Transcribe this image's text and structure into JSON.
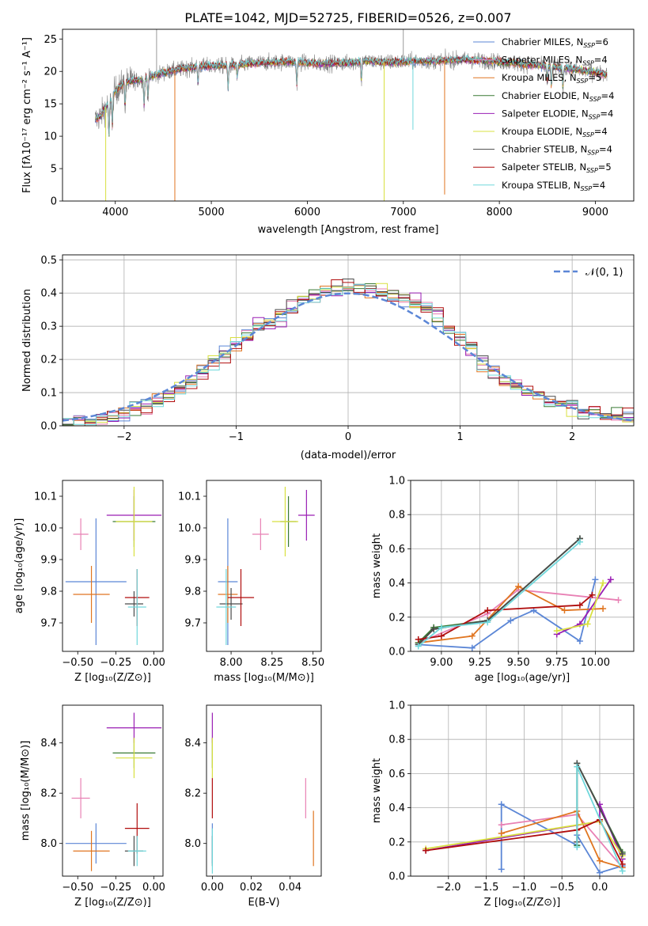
{
  "colors": {
    "Chabrier MILES": "#5b86d6",
    "Salpeter MILES": "#e880b4",
    "Kroupa MILES": "#e07520",
    "Chabrier ELODIE": "#3a7a34",
    "Salpeter ELODIE": "#9a1fb4",
    "Kroupa ELODIE": "#d8e040",
    "Chabrier STELIB": "#4a4a4a",
    "Salpeter STELIB": "#b00d0d",
    "Kroupa STELIB": "#70d8dc",
    "normal": "#5b86d6",
    "grid": "#b0b0b0",
    "spectrum_gray": "#808080"
  },
  "chart_data": [
    {
      "id": "spectrum",
      "type": "line",
      "title": "PLATE=1042, MJD=52725, FIBERID=0526, z=0.007",
      "xlabel": "wavelength [Angstrom, rest frame]",
      "ylabel": "Flux [fλ10⁻¹⁷ erg cm⁻² s⁻¹ A⁻¹]",
      "xlim": [
        3450,
        9400
      ],
      "ylim": [
        0,
        26.5
      ],
      "xticks": [
        4000,
        5000,
        6000,
        7000,
        8000,
        9000
      ],
      "yticks": [
        0,
        5,
        10,
        15,
        20,
        25
      ],
      "grid": false,
      "legend_position": "top-right",
      "legend": [
        {
          "label": "Chabrier MILES, N",
          "sub": "SSP",
          "suffix": "=6"
        },
        {
          "label": "Salpeter MILES, N",
          "sub": "SSP",
          "suffix": "=4"
        },
        {
          "label": "Kroupa MILES, N",
          "sub": "SSP",
          "suffix": "=5"
        },
        {
          "label": "Chabrier ELODIE, N",
          "sub": "SSP",
          "suffix": "=4"
        },
        {
          "label": "Salpeter ELODIE, N",
          "sub": "SSP",
          "suffix": "=4"
        },
        {
          "label": "Kroupa ELODIE, N",
          "sub": "SSP",
          "suffix": "=4"
        },
        {
          "label": "Chabrier STELIB, N",
          "sub": "SSP",
          "suffix": "=4"
        },
        {
          "label": "Salpeter STELIB, N",
          "sub": "SSP",
          "suffix": "=5"
        },
        {
          "label": "Kroupa STELIB, N",
          "sub": "SSP",
          "suffix": "=4"
        }
      ],
      "continuum": [
        [
          3790,
          12.5
        ],
        [
          3850,
          13.2
        ],
        [
          3900,
          14.5
        ],
        [
          3950,
          15.5
        ],
        [
          4000,
          17.0
        ],
        [
          4100,
          18.3
        ],
        [
          4300,
          18.8
        ],
        [
          4500,
          19.8
        ],
        [
          4700,
          20.4
        ],
        [
          4900,
          20.8
        ],
        [
          5200,
          20.9
        ],
        [
          5500,
          21.3
        ],
        [
          5800,
          21.5
        ],
        [
          6100,
          21.2
        ],
        [
          6400,
          21.3
        ],
        [
          6600,
          21.6
        ],
        [
          6800,
          21.4
        ],
        [
          7000,
          21.5
        ],
        [
          7300,
          21.6
        ],
        [
          7600,
          21.8
        ],
        [
          7900,
          21.6
        ],
        [
          8200,
          21.2
        ],
        [
          8500,
          20.8
        ],
        [
          8800,
          20.3
        ],
        [
          9100,
          19.6
        ]
      ],
      "absorption_dips": [
        [
          3934,
          5.0
        ],
        [
          3969,
          4.5
        ],
        [
          4102,
          3.5
        ],
        [
          4300,
          4.0
        ],
        [
          4340,
          3.0
        ],
        [
          4861,
          2.5
        ],
        [
          5175,
          3.5
        ],
        [
          5270,
          2.0
        ],
        [
          5890,
          3.5
        ],
        [
          6563,
          3.0
        ],
        [
          8498,
          2.5
        ],
        [
          8542,
          3.0
        ],
        [
          8662,
          3.0
        ]
      ],
      "model_spikes": [
        [
          3900,
          0.0
        ],
        [
          4620,
          0.0
        ],
        [
          6800,
          0.0
        ],
        [
          7100,
          11.0
        ],
        [
          7430,
          1.0
        ]
      ],
      "data_spikes": [
        [
          4430,
          26.5
        ],
        [
          7000,
          26.5
        ]
      ]
    },
    {
      "id": "residual_histogram",
      "type": "histogram",
      "xlabel": "(data-model)/error",
      "ylabel": "Normed distribution",
      "xlim": [
        -2.55,
        2.55
      ],
      "ylim": [
        0,
        0.515
      ],
      "xticks": [
        -2,
        -1,
        0,
        1,
        2
      ],
      "yticks": [
        0.0,
        0.1,
        0.2,
        0.3,
        0.4,
        0.5
      ],
      "grid": true,
      "bin_width": 0.1,
      "series_name": "𝒩(0, 1)",
      "legend_position": "top-right",
      "profile": [
        [
          -2.55,
          0.008
        ],
        [
          -2.2,
          0.018
        ],
        [
          -1.95,
          0.045
        ],
        [
          -1.7,
          0.07
        ],
        [
          -1.45,
          0.125
        ],
        [
          -1.2,
          0.19
        ],
        [
          -1.0,
          0.24
        ],
        [
          -0.85,
          0.29
        ],
        [
          -0.6,
          0.33
        ],
        [
          -0.4,
          0.38
        ],
        [
          -0.2,
          0.41
        ],
        [
          0.0,
          0.42
        ],
        [
          0.2,
          0.415
        ],
        [
          0.4,
          0.4
        ],
        [
          0.6,
          0.37
        ],
        [
          0.8,
          0.33
        ],
        [
          1.0,
          0.27
        ],
        [
          1.2,
          0.19
        ],
        [
          1.45,
          0.13
        ],
        [
          1.7,
          0.09
        ],
        [
          1.95,
          0.06
        ],
        [
          2.2,
          0.04
        ],
        [
          2.55,
          0.025
        ]
      ]
    },
    {
      "id": "age_vs_Z",
      "type": "errorbar",
      "xlabel": "Z [log₁₀(Z/Z⊙)]",
      "ylabel": "age  [log₁₀(age/yr)]",
      "xlim": [
        -0.6,
        0.06
      ],
      "ylim": [
        9.61,
        10.15
      ],
      "xticks": [
        -0.5,
        -0.25,
        0.0
      ],
      "xticklabels": [
        "−0.50",
        "−0.25",
        "0.00"
      ],
      "yticks": [
        9.7,
        9.8,
        9.9,
        10.0,
        10.1
      ],
      "points": [
        {
          "series": "Chabrier MILES",
          "x": -0.38,
          "xerr": 0.2,
          "y": 9.83,
          "yerr": 0.2
        },
        {
          "series": "Salpeter MILES",
          "x": -0.48,
          "xerr": 0.05,
          "y": 9.98,
          "yerr": 0.05
        },
        {
          "series": "Kroupa MILES",
          "x": -0.41,
          "xerr": 0.12,
          "y": 9.79,
          "yerr": 0.09
        },
        {
          "series": "Chabrier ELODIE",
          "x": -0.13,
          "xerr": 0.14,
          "y": 10.02,
          "yerr": 0.08
        },
        {
          "series": "Salpeter ELODIE",
          "x": -0.13,
          "xerr": 0.18,
          "y": 10.04,
          "yerr": 0.08
        },
        {
          "series": "Kroupa ELODIE",
          "x": -0.13,
          "xerr": 0.12,
          "y": 10.02,
          "yerr": 0.11
        },
        {
          "series": "Chabrier STELIB",
          "x": -0.13,
          "xerr": 0.06,
          "y": 9.76,
          "yerr": 0.04
        },
        {
          "series": "Salpeter STELIB",
          "x": -0.11,
          "xerr": 0.08,
          "y": 9.78,
          "yerr": 0.09
        },
        {
          "series": "Kroupa STELIB",
          "x": -0.11,
          "xerr": 0.06,
          "y": 9.75,
          "yerr": 0.12
        }
      ]
    },
    {
      "id": "age_vs_mass",
      "type": "errorbar",
      "xlabel": "mass [log₁₀(M/M⊙)]",
      "ylabel": "",
      "xlim": [
        7.85,
        8.55
      ],
      "ylim": [
        9.61,
        10.15
      ],
      "xticks": [
        8.0,
        8.25,
        8.5
      ],
      "xticklabels": [
        "8.00",
        "8.25",
        "8.50"
      ],
      "yticks": [
        9.7,
        9.8,
        9.9,
        10.0,
        10.1
      ],
      "points": [
        {
          "series": "Chabrier MILES",
          "x": 7.98,
          "xerr": 0.06,
          "y": 9.83,
          "yerr": 0.2
        },
        {
          "series": "Salpeter MILES",
          "x": 8.18,
          "xerr": 0.05,
          "y": 9.98,
          "yerr": 0.05
        },
        {
          "series": "Kroupa MILES",
          "x": 7.98,
          "xerr": 0.06,
          "y": 9.79,
          "yerr": 0.09
        },
        {
          "series": "Chabrier ELODIE",
          "x": 8.35,
          "xerr": 0.05,
          "y": 10.02,
          "yerr": 0.08
        },
        {
          "series": "Salpeter ELODIE",
          "x": 8.46,
          "xerr": 0.05,
          "y": 10.04,
          "yerr": 0.08
        },
        {
          "series": "Kroupa ELODIE",
          "x": 8.33,
          "xerr": 0.08,
          "y": 10.02,
          "yerr": 0.11
        },
        {
          "series": "Chabrier STELIB",
          "x": 8.0,
          "xerr": 0.07,
          "y": 9.76,
          "yerr": 0.05
        },
        {
          "series": "Salpeter STELIB",
          "x": 8.06,
          "xerr": 0.08,
          "y": 9.78,
          "yerr": 0.09
        },
        {
          "series": "Kroupa STELIB",
          "x": 7.97,
          "xerr": 0.06,
          "y": 9.75,
          "yerr": 0.12
        }
      ]
    },
    {
      "id": "mass_vs_Z",
      "type": "errorbar",
      "xlabel": "Z [log₁₀(Z/Z⊙)]",
      "ylabel": "mass [log₁₀(M/M⊙)]",
      "xlim": [
        -0.6,
        0.06
      ],
      "ylim": [
        7.87,
        8.55
      ],
      "xticks": [
        -0.5,
        -0.25,
        0.0
      ],
      "xticklabels": [
        "−0.50",
        "−0.25",
        "0.00"
      ],
      "yticks": [
        8.0,
        8.2,
        8.4
      ],
      "points": [
        {
          "series": "Chabrier MILES",
          "x": -0.38,
          "xerr": 0.2,
          "y": 8.0,
          "yerr": 0.08
        },
        {
          "series": "Salpeter MILES",
          "x": -0.48,
          "xerr": 0.06,
          "y": 8.18,
          "yerr": 0.08
        },
        {
          "series": "Kroupa MILES",
          "x": -0.41,
          "xerr": 0.12,
          "y": 7.97,
          "yerr": 0.08
        },
        {
          "series": "Chabrier ELODIE",
          "x": -0.13,
          "xerr": 0.14,
          "y": 8.36,
          "yerr": 0.06
        },
        {
          "series": "Salpeter ELODIE",
          "x": -0.13,
          "xerr": 0.18,
          "y": 8.46,
          "yerr": 0.06
        },
        {
          "series": "Kroupa ELODIE",
          "x": -0.13,
          "xerr": 0.12,
          "y": 8.34,
          "yerr": 0.08
        },
        {
          "series": "Chabrier STELIB",
          "x": -0.13,
          "xerr": 0.06,
          "y": 7.97,
          "yerr": 0.06
        },
        {
          "series": "Salpeter STELIB",
          "x": -0.11,
          "xerr": 0.08,
          "y": 8.06,
          "yerr": 0.1
        },
        {
          "series": "Kroupa STELIB",
          "x": -0.11,
          "xerr": 0.06,
          "y": 7.97,
          "yerr": 0.06
        }
      ]
    },
    {
      "id": "mass_vs_EBV",
      "type": "errorbar",
      "xlabel": "E(B-V)",
      "ylabel": "",
      "xlim": [
        -0.003,
        0.056
      ],
      "ylim": [
        7.87,
        8.55
      ],
      "xticks": [
        0.0,
        0.02,
        0.04
      ],
      "xticklabels": [
        "0.00",
        "0.02",
        "0.04"
      ],
      "yticks": [
        8.0,
        8.2,
        8.4
      ],
      "points": [
        {
          "series": "Chabrier MILES",
          "x": 0.0,
          "xerr": 0.0,
          "y": 8.0,
          "yerr": 0.08
        },
        {
          "series": "Salpeter MILES",
          "x": 0.048,
          "xerr": 0.0,
          "y": 8.18,
          "yerr": 0.08
        },
        {
          "series": "Kroupa MILES",
          "x": 0.052,
          "xerr": 0.0,
          "y": 8.02,
          "yerr": 0.11
        },
        {
          "series": "Chabrier ELODIE",
          "x": 0.0,
          "xerr": 0.0,
          "y": 8.36,
          "yerr": 0.06
        },
        {
          "series": "Salpeter ELODIE",
          "x": 0.0,
          "xerr": 0.0,
          "y": 8.46,
          "yerr": 0.06
        },
        {
          "series": "Kroupa ELODIE",
          "x": 0.0,
          "xerr": 0.0,
          "y": 8.34,
          "yerr": 0.08
        },
        {
          "series": "Chabrier STELIB",
          "x": 0.0,
          "xerr": 0.0,
          "y": 7.97,
          "yerr": 0.06
        },
        {
          "series": "Salpeter STELIB",
          "x": 0.0,
          "xerr": 0.0,
          "y": 8.18,
          "yerr": 0.08
        },
        {
          "series": "Kroupa STELIB",
          "x": 0.0,
          "xerr": 0.0,
          "y": 7.97,
          "yerr": 0.09
        }
      ]
    },
    {
      "id": "weight_vs_age",
      "type": "line",
      "marker": "+",
      "xlabel": "age  [log₁₀(age/yr)]",
      "ylabel": "mass weight",
      "xlim": [
        8.8,
        10.25
      ],
      "ylim": [
        0,
        1.0
      ],
      "xticks": [
        9.0,
        9.25,
        9.5,
        9.75,
        10.0
      ],
      "xticklabels": [
        "9.00",
        "9.25",
        "9.50",
        "9.75",
        "10.00"
      ],
      "yticks": [
        0.0,
        0.2,
        0.4,
        0.6,
        0.8,
        1.0
      ],
      "yticklabels": [
        "0.0",
        "0.2",
        "0.4",
        "0.6",
        "0.8",
        "1.0"
      ],
      "grid": true,
      "series": [
        {
          "name": "Chabrier MILES",
          "x": [
            8.85,
            9.2,
            9.45,
            9.6,
            9.9,
            10.0
          ],
          "y": [
            0.04,
            0.02,
            0.18,
            0.24,
            0.06,
            0.42
          ]
        },
        {
          "name": "Salpeter MILES",
          "x": [
            8.85,
            9.3,
            9.5,
            10.15
          ],
          "y": [
            0.05,
            0.22,
            0.36,
            0.3
          ]
        },
        {
          "name": "Kroupa MILES",
          "x": [
            8.85,
            9.2,
            9.5,
            9.8,
            10.05
          ],
          "y": [
            0.05,
            0.09,
            0.38,
            0.24,
            0.25
          ]
        },
        {
          "name": "Chabrier ELODIE",
          "x": [
            8.85,
            8.95,
            9.3,
            9.9
          ],
          "y": [
            0.05,
            0.14,
            0.18,
            0.66
          ]
        },
        {
          "name": "Salpeter ELODIE",
          "x": [
            9.75,
            9.9,
            10.1
          ],
          "y": [
            0.1,
            0.16,
            0.42
          ]
        },
        {
          "name": "Kroupa ELODIE",
          "x": [
            9.75,
            9.95,
            10.05
          ],
          "y": [
            0.12,
            0.16,
            0.4
          ]
        },
        {
          "name": "Chabrier STELIB",
          "x": [
            8.85,
            8.95,
            9.3,
            9.9
          ],
          "y": [
            0.04,
            0.13,
            0.18,
            0.66
          ]
        },
        {
          "name": "Salpeter STELIB",
          "x": [
            8.85,
            9.0,
            9.3,
            9.9,
            9.98
          ],
          "y": [
            0.07,
            0.09,
            0.24,
            0.27,
            0.33
          ]
        },
        {
          "name": "Kroupa STELIB",
          "x": [
            8.85,
            9.0,
            9.3,
            9.9
          ],
          "y": [
            0.03,
            0.14,
            0.17,
            0.64
          ]
        }
      ]
    },
    {
      "id": "weight_vs_Z",
      "type": "line",
      "marker": "+",
      "xlabel": "Z [log₁₀(Z/Z⊙)]",
      "ylabel": "mass weight",
      "xlim": [
        -2.5,
        0.45
      ],
      "ylim": [
        0,
        1.0
      ],
      "xticks": [
        -2.0,
        -1.5,
        -1.0,
        -0.5,
        0.0
      ],
      "xticklabels": [
        "−2.0",
        "−1.5",
        "−1.0",
        "−0.5",
        "0.0"
      ],
      "yticks": [
        0.0,
        0.2,
        0.4,
        0.6,
        0.8,
        1.0
      ],
      "yticklabels": [
        "0.0",
        "0.2",
        "0.4",
        "0.6",
        "0.8",
        "1.0"
      ],
      "grid": true,
      "series": [
        {
          "name": "Chabrier MILES",
          "x": [
            -1.3,
            -1.3,
            -0.3,
            -0.3,
            0.0,
            0.3
          ],
          "y": [
            0.04,
            0.42,
            0.18,
            0.24,
            0.02,
            0.06
          ]
        },
        {
          "name": "Salpeter MILES",
          "x": [
            -1.3,
            -0.3,
            0.3
          ],
          "y": [
            0.3,
            0.36,
            0.05
          ]
        },
        {
          "name": "Kroupa MILES",
          "x": [
            -1.3,
            -0.3,
            0.0,
            0.3
          ],
          "y": [
            0.25,
            0.38,
            0.09,
            0.05
          ]
        },
        {
          "name": "Chabrier ELODIE",
          "x": [
            -0.3,
            -0.3,
            0.3
          ],
          "y": [
            0.18,
            0.66,
            0.14
          ]
        },
        {
          "name": "Salpeter ELODIE",
          "x": [
            -2.3,
            0.0,
            0.0,
            0.3
          ],
          "y": [
            0.15,
            0.32,
            0.42,
            0.1
          ]
        },
        {
          "name": "Kroupa ELODIE",
          "x": [
            -2.3,
            0.0,
            0.3
          ],
          "y": [
            0.16,
            0.32,
            0.12
          ]
        },
        {
          "name": "Chabrier STELIB",
          "x": [
            -0.3,
            -0.3,
            0.3
          ],
          "y": [
            0.2,
            0.66,
            0.13
          ]
        },
        {
          "name": "Salpeter STELIB",
          "x": [
            -2.3,
            -0.3,
            0.0,
            0.3
          ],
          "y": [
            0.15,
            0.27,
            0.33,
            0.07
          ]
        },
        {
          "name": "Kroupa STELIB",
          "x": [
            -0.3,
            -0.3,
            0.3
          ],
          "y": [
            0.17,
            0.64,
            0.03
          ]
        }
      ]
    }
  ]
}
